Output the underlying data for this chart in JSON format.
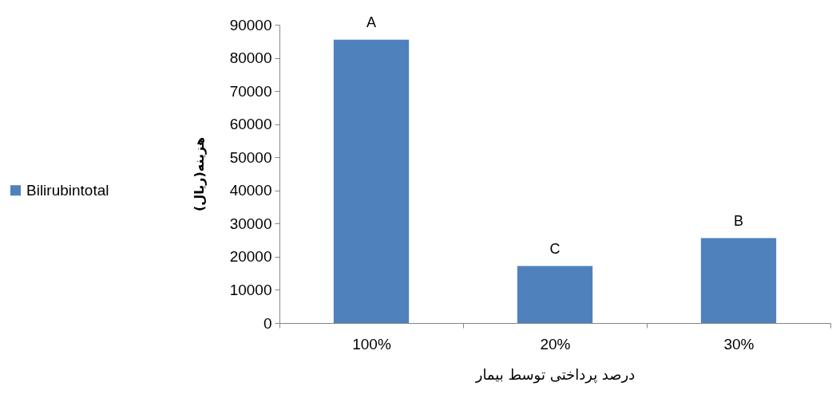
{
  "chart_data": {
    "type": "bar",
    "xlabel": "درصد پرداختی توسط بیمار",
    "ylabel": "هزینه(ریال)",
    "categories": [
      "100%",
      "20%",
      "30%"
    ],
    "series": [
      {
        "name": "Bilirubintotal",
        "color": "#4f81bd",
        "values": [
          85500,
          17200,
          25600
        ]
      }
    ],
    "ylim": [
      0,
      90000
    ],
    "yticks": [
      0,
      10000,
      20000,
      30000,
      40000,
      50000,
      60000,
      70000,
      80000,
      90000
    ],
    "annotations": [
      {
        "text": "A",
        "x": "100%",
        "y": 85500
      },
      {
        "text": "C",
        "x": "20%",
        "y": 17200
      },
      {
        "text": "B",
        "x": "30%",
        "y": 25600
      }
    ],
    "legend": "left"
  }
}
